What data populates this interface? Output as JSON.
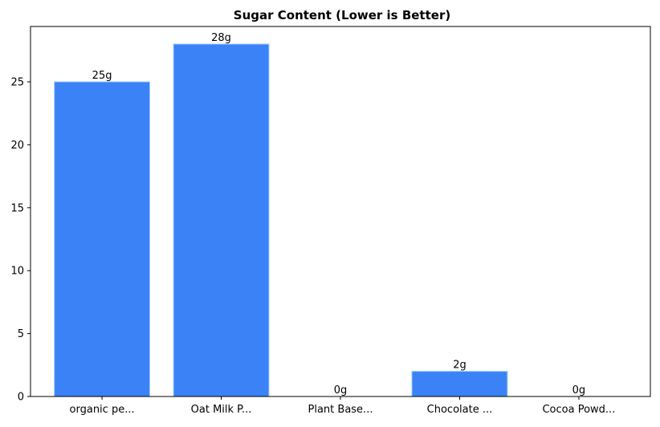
{
  "chart_data": {
    "type": "bar",
    "title": "Sugar Content (Lower is Better)",
    "xlabel": "",
    "ylabel": "",
    "categories": [
      "organic pe...",
      "Oat Milk P...",
      "Plant Base...",
      "Chocolate ...",
      "Cocoa Powd..."
    ],
    "values": [
      25,
      28,
      0,
      2,
      0
    ],
    "data_labels": [
      "25g",
      "28g",
      "0g",
      "2g",
      "0g"
    ],
    "yticks": [
      0,
      5,
      10,
      15,
      20,
      25
    ],
    "ylim": [
      0,
      29.4
    ],
    "grid": false,
    "legend": "none",
    "colors": {
      "bar": "#3b82f6",
      "bar_edge": "#93c5fd",
      "axis": "#000000",
      "background": "#ffffff"
    }
  }
}
